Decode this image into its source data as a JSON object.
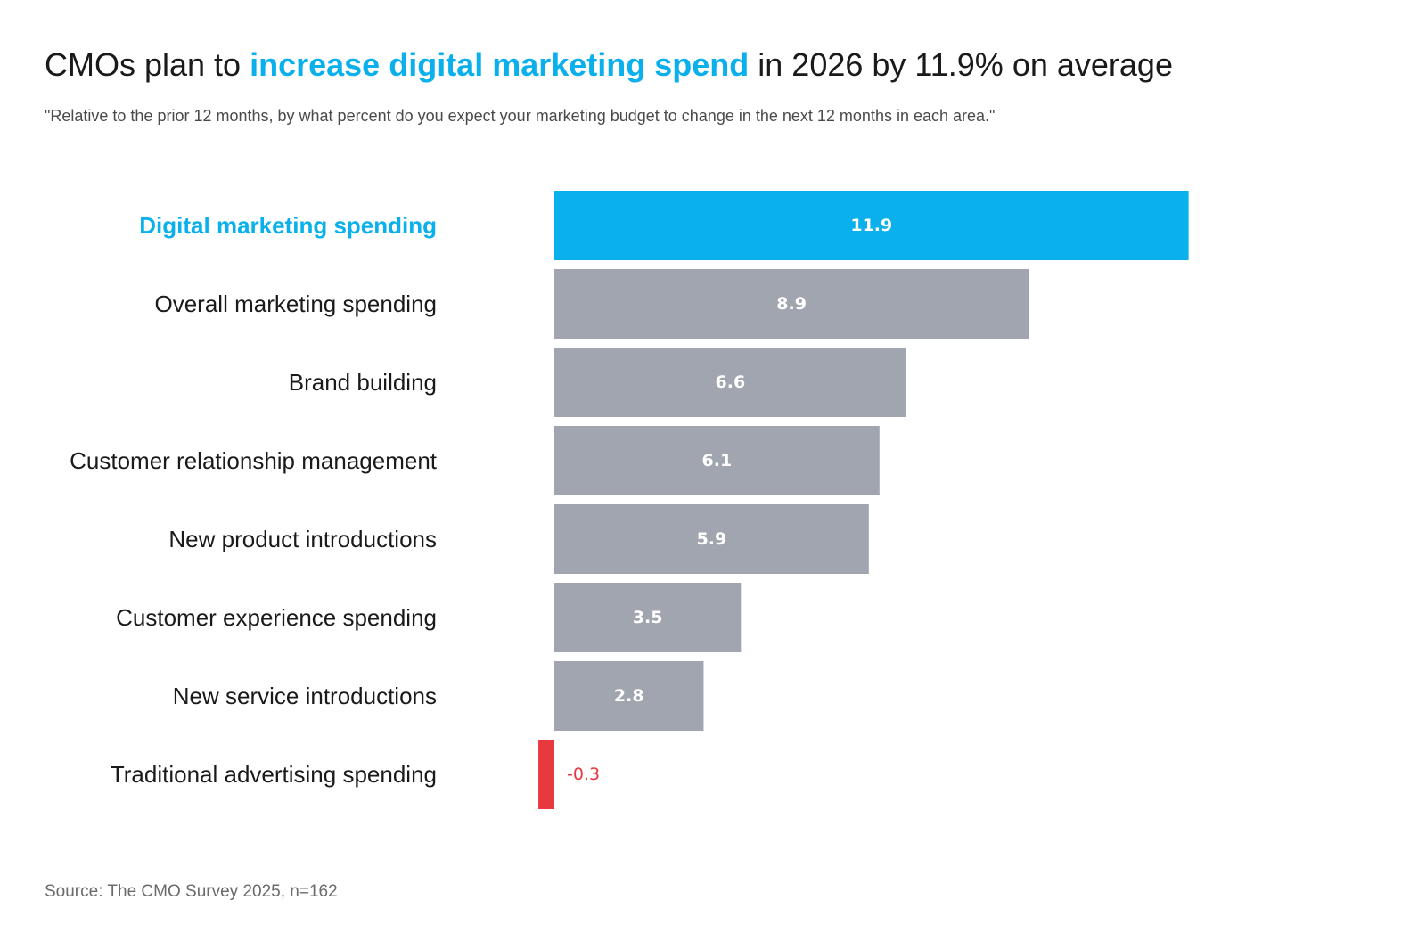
{
  "title": {
    "prefix": "CMOs plan to ",
    "highlight": "increase digital marketing spend",
    "suffix": " in 2026 by 11.9% on average"
  },
  "subtitle": "\"Relative to the prior 12 months, by what percent do you expect your marketing budget to change in the next 12 months in each area.\"",
  "source": "Source: The CMO Survey 2025, n=162",
  "colors": {
    "highlight": "#0ab0ec",
    "default_bar": "#a0a5b0",
    "negative": "#e8393f"
  },
  "chart_data": {
    "type": "bar",
    "orientation": "horizontal",
    "title": "CMOs plan to increase digital marketing spend in 2026 by 11.9% on average",
    "xlabel": "",
    "ylabel": "",
    "categories": [
      "Digital marketing spending",
      "Overall marketing spending",
      "Brand building",
      "Customer relationship management",
      "New product introductions",
      "Customer experience spending",
      "New service introductions",
      "Traditional advertising spending"
    ],
    "values": [
      11.9,
      8.9,
      6.6,
      6.1,
      5.9,
      3.5,
      2.8,
      -0.3
    ],
    "value_labels": [
      "11.9",
      "8.9",
      "6.6",
      "6.1",
      "5.9",
      "3.5",
      "2.8",
      "-0.3"
    ],
    "highlight_index": 0,
    "xlim": [
      -0.3,
      11.9
    ],
    "grid": false,
    "legend": "none"
  }
}
